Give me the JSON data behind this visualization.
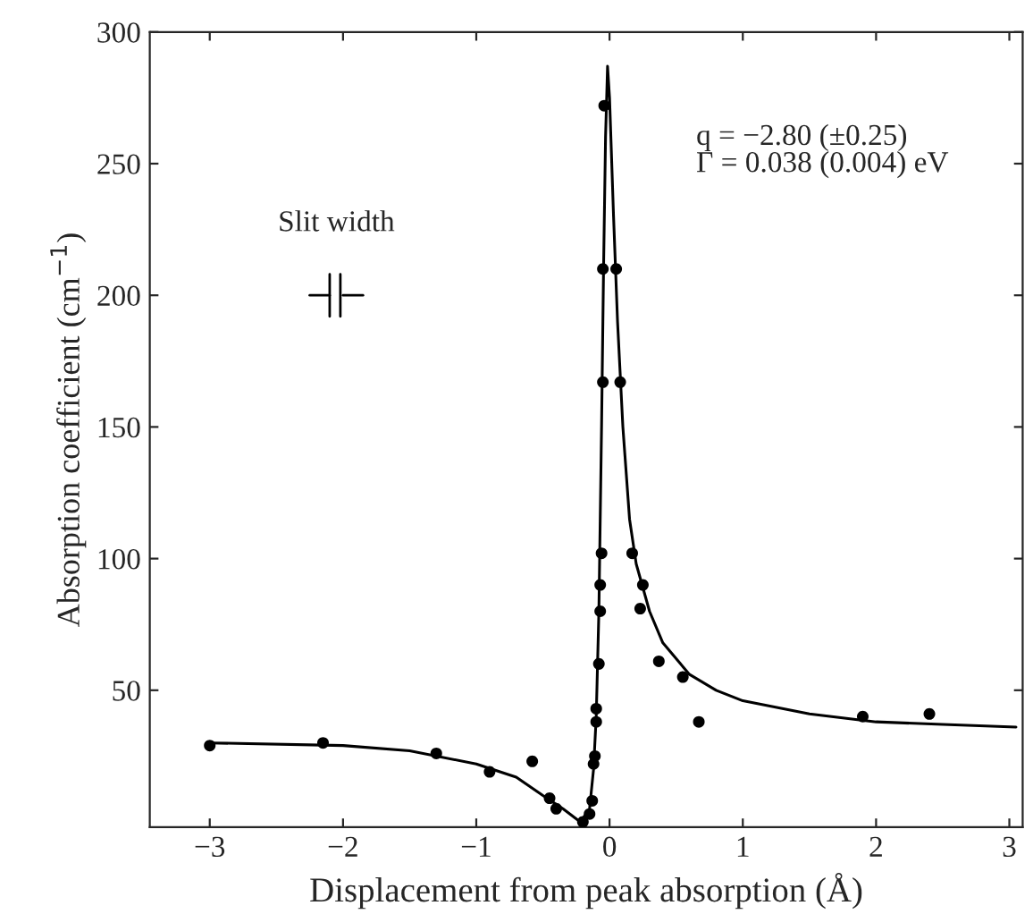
{
  "chart_data": {
    "type": "scatter",
    "xlabel": "Displacement from peak absorption (Å)",
    "ylabel": "Absorption coefficient (cm$^{−1}$)",
    "xlim": [
      -3.45,
      3.1
    ],
    "ylim": [
      -2,
      300
    ],
    "xticks": [
      {
        "value": -3,
        "label": "−3"
      },
      {
        "value": -2,
        "label": "−2"
      },
      {
        "value": -1,
        "label": "−1"
      },
      0,
      1,
      2,
      3
    ],
    "yticks": [
      50,
      100,
      150,
      200,
      250,
      300
    ],
    "grid": false,
    "marker": "circle",
    "annotations": [
      "Slit width",
      "q = −2.80 (±0.25)\nΓ = 0.038 (0.004) eV"
    ],
    "series": [
      {
        "color": "#000000",
        "x": [
          -3.0,
          -2.15,
          -1.3,
          -0.9,
          -0.58,
          -0.45,
          -0.4,
          -0.2,
          -0.15,
          -0.13,
          -0.12,
          -0.11,
          -0.1,
          -0.1,
          -0.08,
          -0.07,
          -0.07,
          -0.06,
          -0.05,
          -0.05,
          -0.04,
          0.05,
          0.08,
          0.17,
          0.25,
          0.23,
          0.37,
          0.55,
          0.67,
          1.9,
          2.4
        ],
        "values": [
          29,
          30,
          26,
          19,
          23,
          9,
          5,
          0,
          3,
          8,
          22,
          25,
          38,
          43,
          60,
          80,
          90,
          102,
          167,
          210,
          272,
          210,
          167,
          102,
          90,
          81,
          61,
          55,
          38,
          40,
          41
        ]
      },
      {
        "type": "line",
        "color": "#000000",
        "line_style": "solid",
        "marker": "none",
        "x": [
          -3,
          -2,
          -1.5,
          -1,
          -0.7,
          -0.5,
          -0.35,
          -0.22,
          -0.15,
          -0.12,
          -0.1,
          -0.08,
          -0.06,
          -0.045,
          -0.03,
          -0.015,
          0,
          0.03,
          0.06,
          0.1,
          0.15,
          0.2,
          0.3,
          0.4,
          0.6,
          0.8,
          1,
          1.5,
          2,
          2.5,
          3.05
        ],
        "values": [
          30,
          29,
          27,
          22,
          17,
          10,
          5,
          0,
          5,
          20,
          40,
          80,
          150,
          210,
          260,
          287,
          275,
          230,
          190,
          150,
          115,
          98,
          80,
          68,
          56,
          50,
          46,
          41,
          38,
          37,
          36
        ]
      }
    ]
  }
}
